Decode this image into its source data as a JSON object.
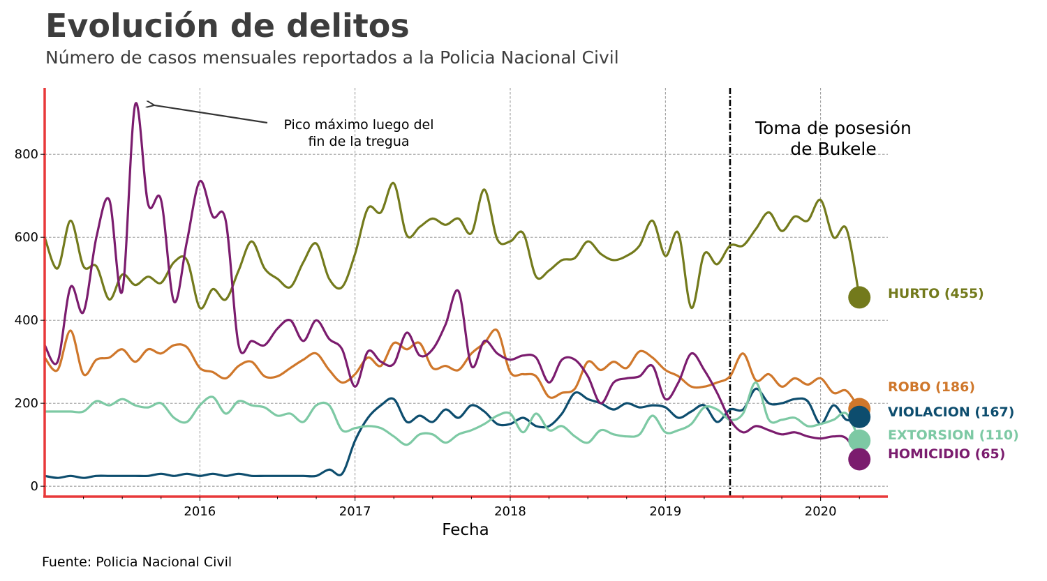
{
  "header": {
    "title": "Evolución de delitos",
    "subtitle": "Número de casos mensuales reportados a la Policia Nacional Civil"
  },
  "footer": {
    "source": "Fuente: Policia Nacional Civil"
  },
  "chart_data": {
    "type": "line",
    "title": "Evolución de delitos",
    "subtitle": "Número de casos mensuales reportados a la Policia Nacional Civil",
    "xlabel": "Fecha",
    "ylabel": "",
    "xlim": [
      "2015-01",
      "2020-05"
    ],
    "ylim": [
      -25,
      960
    ],
    "x_ticks": [
      "2016",
      "2017",
      "2018",
      "2019",
      "2020"
    ],
    "y_ticks": [
      0,
      200,
      400,
      600,
      800
    ],
    "grid": true,
    "legend": "end-of-line labels",
    "axis_color": "#e8393a",
    "x": [
      "2015-01",
      "2015-02",
      "2015-03",
      "2015-04",
      "2015-05",
      "2015-06",
      "2015-07",
      "2015-08",
      "2015-09",
      "2015-10",
      "2015-11",
      "2015-12",
      "2016-01",
      "2016-02",
      "2016-03",
      "2016-04",
      "2016-05",
      "2016-06",
      "2016-07",
      "2016-08",
      "2016-09",
      "2016-10",
      "2016-11",
      "2016-12",
      "2017-01",
      "2017-02",
      "2017-03",
      "2017-04",
      "2017-05",
      "2017-06",
      "2017-07",
      "2017-08",
      "2017-09",
      "2017-10",
      "2017-11",
      "2017-12",
      "2018-01",
      "2018-02",
      "2018-03",
      "2018-04",
      "2018-05",
      "2018-06",
      "2018-07",
      "2018-08",
      "2018-09",
      "2018-10",
      "2018-11",
      "2018-12",
      "2019-01",
      "2019-02",
      "2019-03",
      "2019-04",
      "2019-05",
      "2019-06",
      "2019-07",
      "2019-08",
      "2019-09",
      "2019-10",
      "2019-11",
      "2019-12",
      "2020-01",
      "2020-02",
      "2020-03",
      "2020-04"
    ],
    "series": [
      {
        "name": "HURTO",
        "label": "HURTO (455)",
        "color": "#737a1c",
        "values": [
          600,
          525,
          640,
          530,
          530,
          450,
          510,
          485,
          505,
          490,
          540,
          545,
          430,
          475,
          450,
          520,
          590,
          525,
          500,
          480,
          540,
          585,
          500,
          480,
          560,
          670,
          660,
          730,
          605,
          625,
          645,
          630,
          645,
          610,
          715,
          595,
          590,
          610,
          505,
          520,
          545,
          550,
          590,
          560,
          545,
          555,
          580,
          640,
          555,
          610,
          430,
          560,
          535,
          580,
          580,
          620,
          660,
          615,
          650,
          640,
          690,
          600,
          620,
          455
        ],
        "end_value": 455
      },
      {
        "name": "ROBO",
        "label": "ROBO (186)",
        "color": "#cf772b",
        "values": [
          310,
          280,
          375,
          270,
          305,
          310,
          330,
          300,
          330,
          320,
          340,
          335,
          285,
          275,
          260,
          290,
          300,
          265,
          265,
          285,
          305,
          320,
          280,
          250,
          270,
          310,
          290,
          345,
          330,
          345,
          285,
          290,
          280,
          320,
          345,
          375,
          275,
          270,
          265,
          215,
          225,
          235,
          300,
          280,
          300,
          285,
          325,
          310,
          280,
          265,
          240,
          240,
          250,
          265,
          320,
          255,
          270,
          240,
          260,
          245,
          260,
          225,
          230,
          186
        ],
        "end_value": 186
      },
      {
        "name": "VIOLACION",
        "label": "VIOLACION (167)",
        "color": "#0d4d6e",
        "values": [
          25,
          20,
          25,
          20,
          25,
          25,
          25,
          25,
          25,
          30,
          25,
          30,
          25,
          30,
          25,
          30,
          25,
          25,
          25,
          25,
          25,
          25,
          40,
          30,
          110,
          165,
          195,
          210,
          155,
          170,
          155,
          185,
          165,
          195,
          180,
          150,
          150,
          165,
          145,
          145,
          175,
          225,
          210,
          200,
          185,
          200,
          190,
          195,
          190,
          165,
          180,
          195,
          155,
          185,
          185,
          235,
          200,
          200,
          210,
          205,
          150,
          195,
          160,
          167
        ],
        "end_value": 167
      },
      {
        "name": "EXTORSION",
        "label": "EXTORSION (110)",
        "color": "#7dc9a4",
        "values": [
          180,
          180,
          180,
          180,
          205,
          195,
          210,
          195,
          190,
          200,
          165,
          155,
          195,
          215,
          175,
          205,
          195,
          190,
          170,
          175,
          155,
          195,
          195,
          135,
          140,
          145,
          140,
          120,
          100,
          125,
          125,
          105,
          125,
          135,
          150,
          170,
          175,
          130,
          175,
          135,
          145,
          120,
          105,
          135,
          125,
          120,
          125,
          170,
          130,
          135,
          150,
          190,
          185,
          160,
          175,
          250,
          160,
          160,
          165,
          145,
          150,
          160,
          175,
          110
        ],
        "end_value": 110
      },
      {
        "name": "HOMICIDIO",
        "label": "HOMICIDIO (65)",
        "color": "#7b1c6e",
        "values": [
          340,
          300,
          480,
          420,
          600,
          690,
          470,
          920,
          680,
          690,
          445,
          590,
          735,
          650,
          640,
          340,
          350,
          340,
          380,
          400,
          350,
          400,
          355,
          330,
          240,
          325,
          300,
          295,
          370,
          315,
          330,
          390,
          470,
          290,
          350,
          320,
          305,
          315,
          310,
          250,
          305,
          305,
          265,
          200,
          250,
          260,
          265,
          290,
          210,
          250,
          320,
          280,
          225,
          160,
          130,
          145,
          135,
          125,
          130,
          120,
          115,
          120,
          115,
          65
        ],
        "end_value": 65
      }
    ],
    "annotations": [
      {
        "text_lines": [
          "Pico máximo luego del",
          "fin de la tregua"
        ],
        "target_x": "2015-09",
        "target_y": 920
      },
      {
        "text_lines": [
          "Toma de posesión",
          "de Bukele"
        ],
        "vline_x": "2019-06-01"
      }
    ]
  }
}
